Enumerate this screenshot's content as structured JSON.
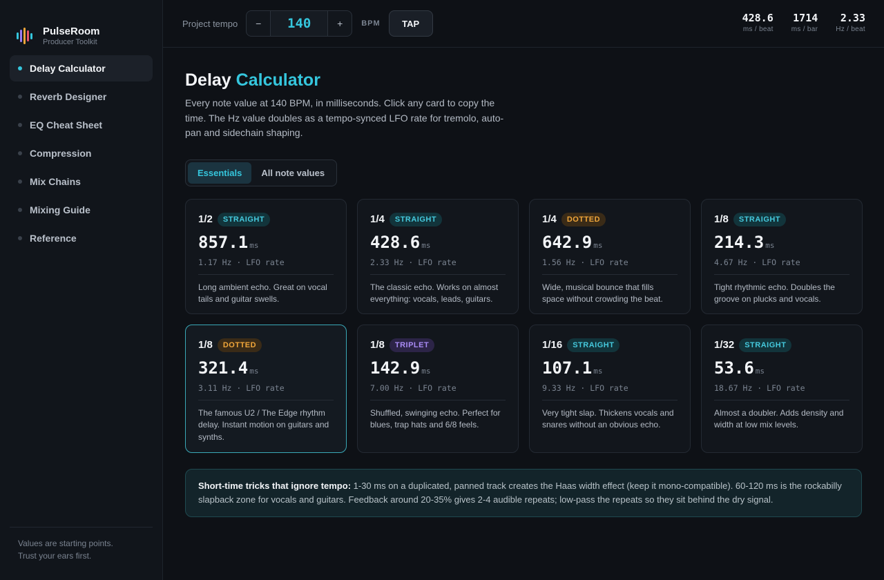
{
  "brand": {
    "name": "PulseRoom",
    "subtitle": "Producer Toolkit",
    "logo_colors": [
      "#35c6dd",
      "#9b7cf2",
      "#f0a63a",
      "#e8556d",
      "#35c6dd"
    ]
  },
  "sidebar": {
    "items": [
      {
        "label": "Delay Calculator",
        "active": true
      },
      {
        "label": "Reverb Designer",
        "active": false
      },
      {
        "label": "EQ Cheat Sheet",
        "active": false
      },
      {
        "label": "Compression",
        "active": false
      },
      {
        "label": "Mix Chains",
        "active": false
      },
      {
        "label": "Mixing Guide",
        "active": false
      },
      {
        "label": "Reference",
        "active": false
      }
    ],
    "footer_line1": "Values are starting points.",
    "footer_line2": "Trust your ears first."
  },
  "topbar": {
    "tempo_label": "Project tempo",
    "decrement": "−",
    "tempo_value": "140",
    "increment": "+",
    "unit": "BPM",
    "tap_label": "TAP",
    "stats": [
      {
        "value": "428.6",
        "unit": "ms / beat"
      },
      {
        "value": "1714",
        "unit": "ms / bar"
      },
      {
        "value": "2.33",
        "unit": "Hz / beat"
      }
    ]
  },
  "page": {
    "title_main": "Delay",
    "title_accent": "Calculator",
    "description": "Every note value at 140 BPM, in milliseconds. Click any card to copy the time. The Hz value doubles as a tempo-synced LFO rate for tremolo, auto-pan and sidechain shaping."
  },
  "tabs": [
    {
      "label": "Essentials",
      "active": true
    },
    {
      "label": "All note values",
      "active": false
    }
  ],
  "cards": [
    {
      "note": "1/2",
      "type": "STRAIGHT",
      "ms": "857.1",
      "ms_unit": "ms",
      "hz": "1.17 Hz · LFO rate",
      "desc": "Long ambient echo. Great on vocal tails and guitar swells."
    },
    {
      "note": "1/4",
      "type": "STRAIGHT",
      "ms": "428.6",
      "ms_unit": "ms",
      "hz": "2.33 Hz · LFO rate",
      "desc": "The classic echo. Works on almost everything: vocals, leads, guitars."
    },
    {
      "note": "1/4",
      "type": "DOTTED",
      "ms": "642.9",
      "ms_unit": "ms",
      "hz": "1.56 Hz · LFO rate",
      "desc": "Wide, musical bounce that fills space without crowding the beat."
    },
    {
      "note": "1/8",
      "type": "STRAIGHT",
      "ms": "214.3",
      "ms_unit": "ms",
      "hz": "4.67 Hz · LFO rate",
      "desc": "Tight rhythmic echo. Doubles the groove on plucks and vocals."
    },
    {
      "note": "1/8",
      "type": "DOTTED",
      "ms": "321.4",
      "ms_unit": "ms",
      "hz": "3.11 Hz · LFO rate",
      "desc": "The famous U2 / The Edge rhythm delay. Instant motion on guitars and synths."
    },
    {
      "note": "1/8",
      "type": "TRIPLET",
      "ms": "142.9",
      "ms_unit": "ms",
      "hz": "7.00 Hz · LFO rate",
      "desc": "Shuffled, swinging echo. Perfect for blues, trap hats and 6/8 feels."
    },
    {
      "note": "1/16",
      "type": "STRAIGHT",
      "ms": "107.1",
      "ms_unit": "ms",
      "hz": "9.33 Hz · LFO rate",
      "desc": "Very tight slap. Thickens vocals and snares without an obvious echo."
    },
    {
      "note": "1/32",
      "type": "STRAIGHT",
      "ms": "53.6",
      "ms_unit": "ms",
      "hz": "18.67 Hz · LFO rate",
      "desc": "Almost a doubler. Adds density and width at low mix levels."
    }
  ],
  "tip": {
    "title": "Short-time tricks that ignore tempo:",
    "body": " 1-30 ms on a duplicated, panned track creates the Haas width effect (keep it mono-compatible). 60-120 ms is the rockabilly slapback zone for vocals and guitars. Feedback around 20-35% gives 2-4 audible repeats; low-pass the repeats so they sit behind the dry signal."
  },
  "colors": {
    "accent": "#35c6dd",
    "dotted": "#f0a63a",
    "triplet": "#a98bf5",
    "background": "#0e1116"
  }
}
